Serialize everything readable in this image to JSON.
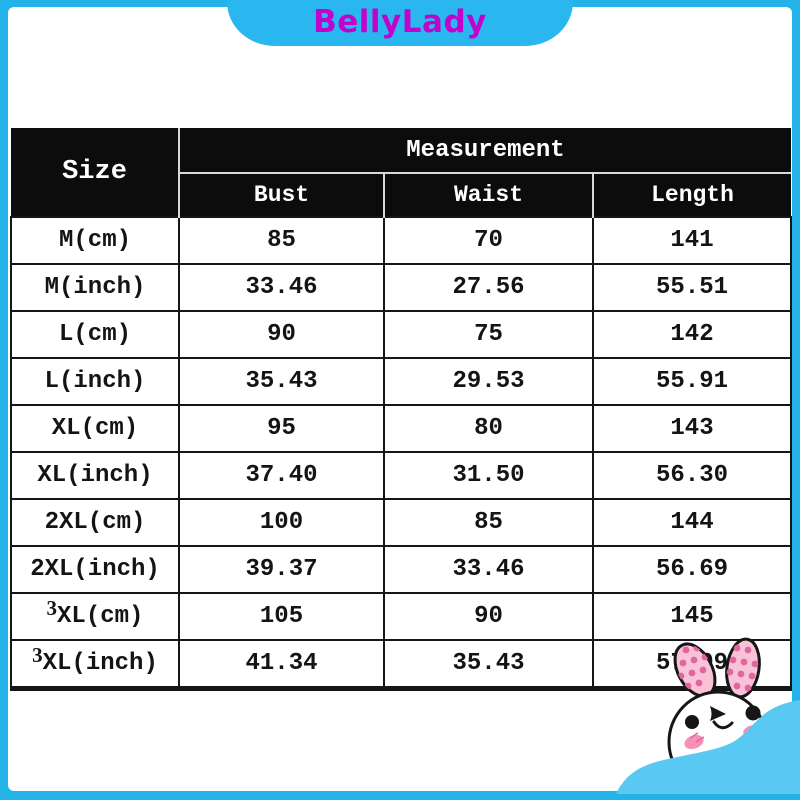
{
  "brand": {
    "name": "BellyLady",
    "text_color": "#c203cb",
    "banner_color": "#2ab7ef"
  },
  "colors": {
    "frame_cyan": "#24b3e9",
    "wave_blue": "#59c9f4",
    "header_background": "#0c0c0c",
    "header_text": "#ffffff",
    "grid_line": "#161616",
    "header_divider": "#d9d9d9",
    "ear_pink": "#f9c2d7",
    "ear_dot_pink": "#e0669f",
    "blush_pink": "#f590b8"
  },
  "table": {
    "corner_header": "Size",
    "group_header": "Measurement",
    "columns": [
      "Bust",
      "Waist",
      "Length"
    ],
    "rows": [
      {
        "size": "M(cm)",
        "values": [
          "85",
          "70",
          "141"
        ]
      },
      {
        "size": "M(inch)",
        "values": [
          "33.46",
          "27.56",
          "55.51"
        ]
      },
      {
        "size": "L(cm)",
        "values": [
          "90",
          "75",
          "142"
        ]
      },
      {
        "size": "L(inch)",
        "values": [
          "35.43",
          "29.53",
          "55.91"
        ]
      },
      {
        "size": "XL(cm)",
        "values": [
          "95",
          "80",
          "143"
        ]
      },
      {
        "size": "XL(inch)",
        "values": [
          "37.40",
          "31.50",
          "56.30"
        ]
      },
      {
        "size": "2XL(cm)",
        "values": [
          "100",
          "85",
          "144"
        ]
      },
      {
        "size": "2XL(inch)",
        "values": [
          "39.37",
          "33.46",
          "56.69"
        ]
      },
      {
        "size": "3XL(cm)",
        "values": [
          "105",
          "90",
          "145"
        ]
      },
      {
        "size": "3XL(inch)",
        "values": [
          "41.34",
          "35.43",
          "57.09"
        ]
      }
    ]
  },
  "mascot": {
    "type": "bunny",
    "description": "white bunny with pink polka-dot ears peeking over blue wave"
  }
}
